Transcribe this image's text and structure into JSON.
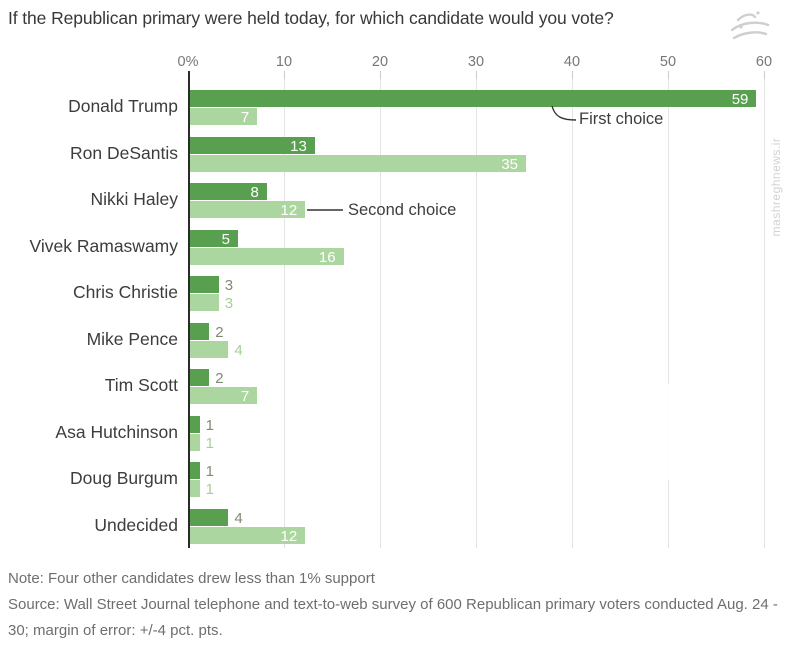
{
  "title": "If the Republican primary were held today, for which candidate would you vote?",
  "watermark": {
    "site_text": "mashreghnews.ir"
  },
  "chart_data": {
    "type": "bar",
    "orientation": "horizontal",
    "title": "If the Republican primary were held today, for which candidate would you vote?",
    "categories": [
      "Donald Trump",
      "Ron DeSantis",
      "Nikki Haley",
      "Vivek Ramaswamy",
      "Chris Christie",
      "Mike Pence",
      "Tim Scott",
      "Asa Hutchinson",
      "Doug Burgum",
      "Undecided"
    ],
    "series": [
      {
        "name": "First choice",
        "color": "#58a04f",
        "values": [
          59,
          13,
          8,
          5,
          3,
          2,
          2,
          1,
          1,
          4
        ]
      },
      {
        "name": "Second choice",
        "color": "#acd6a0",
        "values": [
          7,
          35,
          12,
          16,
          3,
          4,
          7,
          1,
          1,
          12
        ]
      }
    ],
    "x_ticks": [
      "0%",
      "10",
      "20",
      "30",
      "40",
      "50",
      "60"
    ],
    "x_tick_values": [
      0,
      10,
      20,
      30,
      40,
      50,
      60
    ],
    "xlim": [
      0,
      60
    ],
    "grid": "vertical",
    "legend": "inline-annotations",
    "annotations": [
      {
        "text": "First choice",
        "category": "Donald Trump",
        "series_index": 0
      },
      {
        "text": "Second choice",
        "category": "Nikki Haley",
        "series_index": 1
      }
    ],
    "value_label_colors": {
      "inside": "#ffffff",
      "outside_first": "#7f8a74",
      "outside_second": "#a5cf99"
    }
  },
  "notes": {
    "note": "Note: Four other candidates drew less than 1% support",
    "source": "Source: Wall Street Journal telephone and text-to-web survey of 600 Republican primary voters conducted Aug. 24 - 30; margin of error: +/-4 pct. pts."
  }
}
